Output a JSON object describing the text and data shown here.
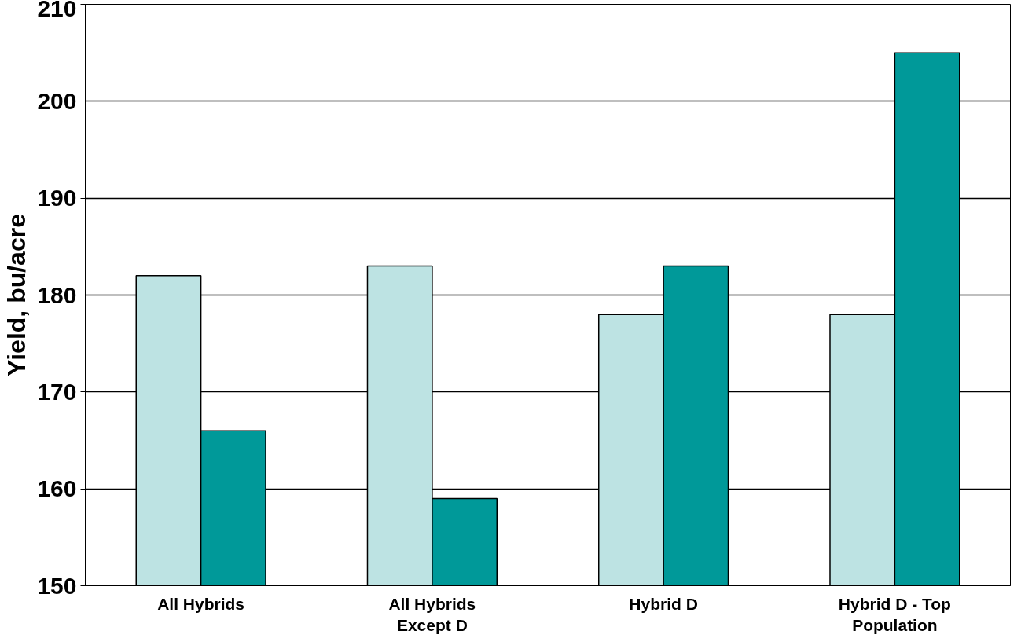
{
  "chart_data": {
    "type": "bar",
    "ylabel": "Yield, bu/acre",
    "categories": [
      "All Hybrids",
      "All Hybrids\nExcept D",
      "Hybrid D",
      "Hybrid D - Top\nPopulation"
    ],
    "series": [
      {
        "color": "#bde3e3",
        "values": [
          182,
          183,
          178,
          178
        ]
      },
      {
        "color": "#009999",
        "values": [
          166,
          159,
          183,
          205
        ]
      }
    ],
    "ylim": [
      150,
      210
    ],
    "yticks": [
      150,
      160,
      170,
      180,
      190,
      200,
      210
    ],
    "grid": "y"
  }
}
